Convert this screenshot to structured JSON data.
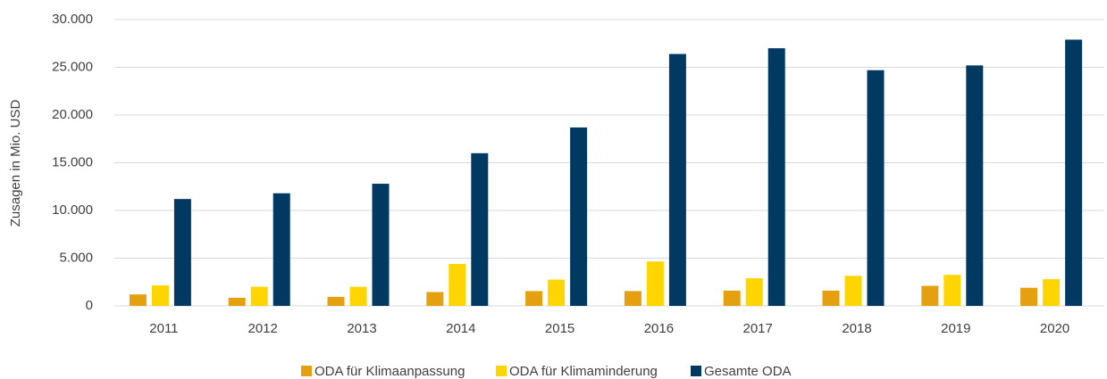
{
  "chart_data": {
    "type": "bar",
    "y_label": "Zusagen in Mio. USD",
    "categories": [
      "2011",
      "2012",
      "2013",
      "2014",
      "2015",
      "2016",
      "2017",
      "2018",
      "2019",
      "2020"
    ],
    "series": [
      {
        "name": "ODA für Klimaanpassung",
        "color": "#e5a010",
        "values": [
          1200,
          850,
          950,
          1450,
          1550,
          1550,
          1600,
          1600,
          2100,
          1900
        ]
      },
      {
        "name": "ODA für Klimaminderung",
        "color": "#ffd500",
        "values": [
          2150,
          2000,
          2000,
          4400,
          2750,
          4650,
          2900,
          3150,
          3250,
          2800
        ]
      },
      {
        "name": "Gesamte ODA",
        "color": "#003a63",
        "values": [
          11200,
          11800,
          12800,
          16000,
          18700,
          26400,
          27000,
          24700,
          25200,
          27900
        ]
      }
    ],
    "ylim": [
      0,
      30000
    ],
    "yticks": [
      0,
      {
        "value": 5000,
        "label": "5.000"
      },
      {
        "value": 10000,
        "label": "10.000"
      },
      {
        "value": 15000,
        "label": "15.000"
      },
      {
        "value": 20000,
        "label": "20.000"
      },
      {
        "value": 25000,
        "label": "25.000"
      },
      {
        "value": 30000,
        "label": "30.000"
      }
    ],
    "grid": true,
    "legend": "bottom"
  }
}
